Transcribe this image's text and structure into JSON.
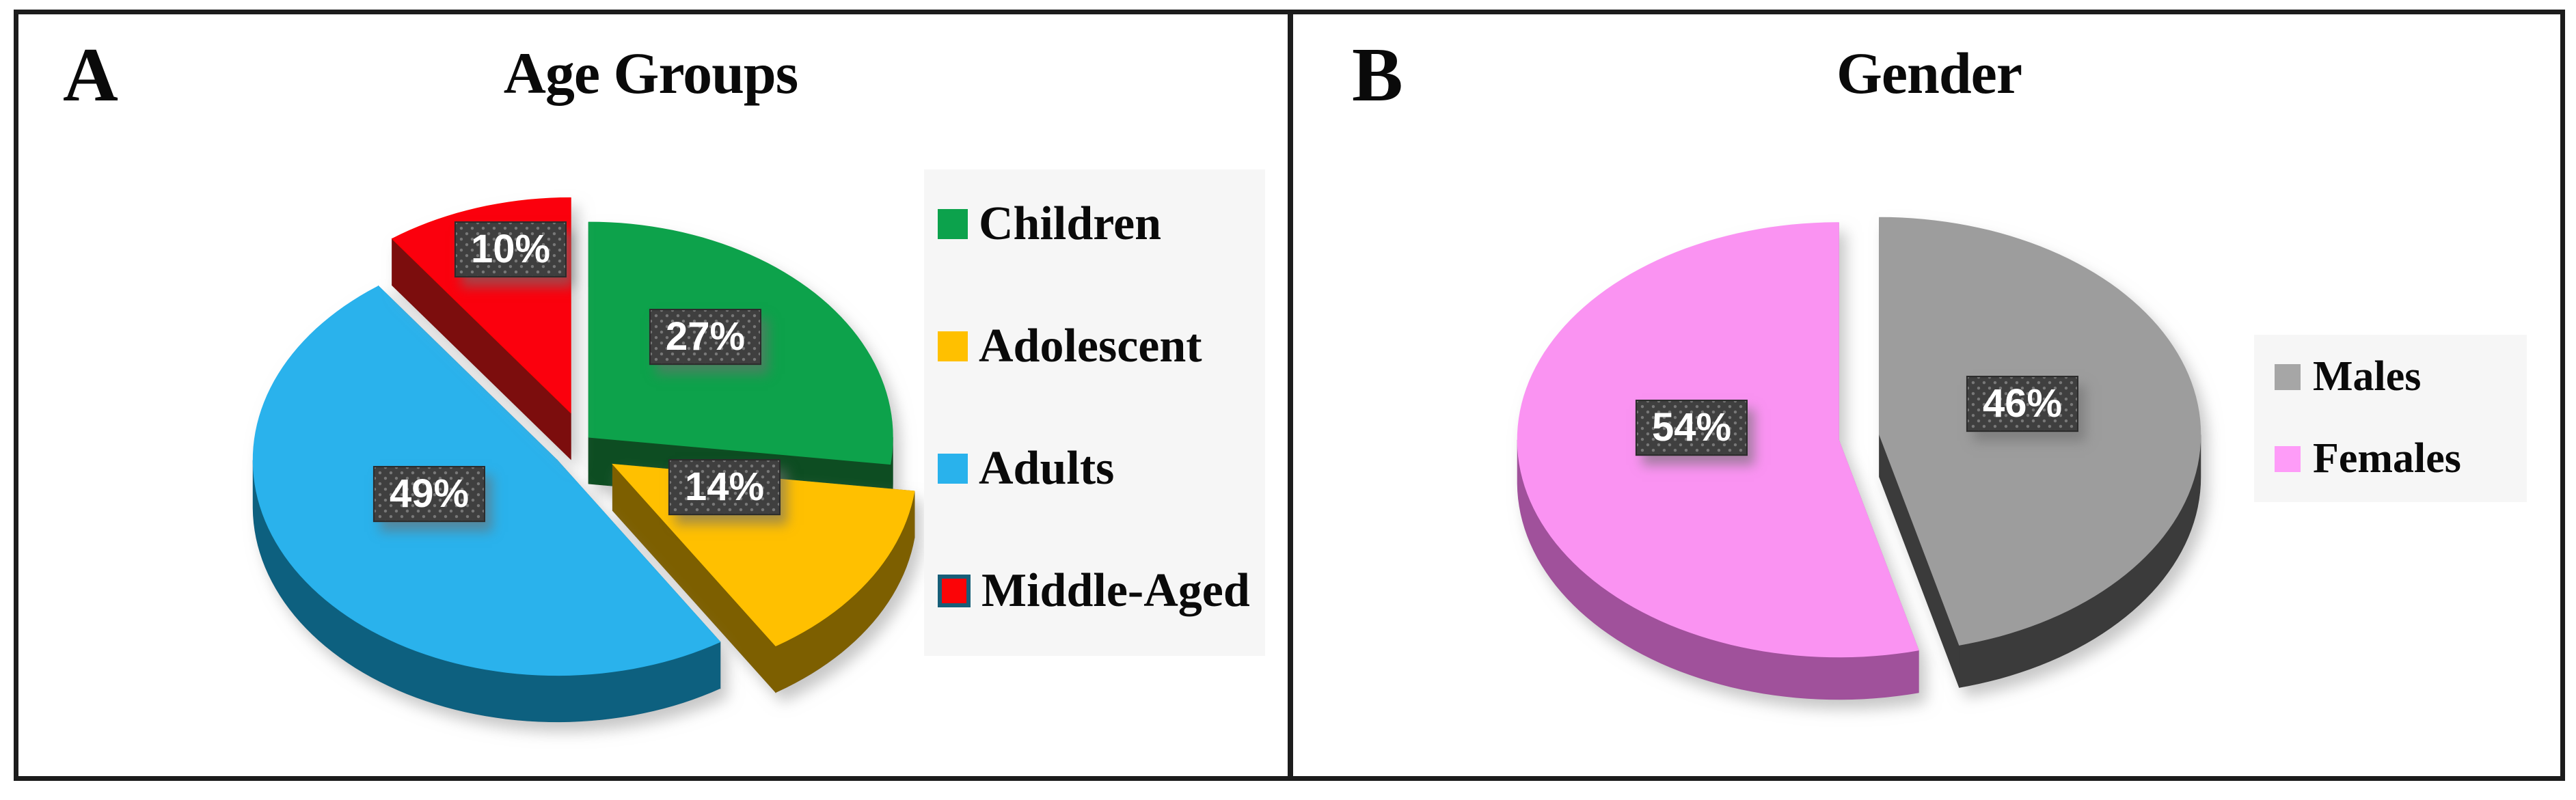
{
  "panels": [
    {
      "panel_label": "A",
      "title": "Age Groups",
      "legend": [
        {
          "label": "Children",
          "color": "#0ca24c"
        },
        {
          "label": "Adolescent",
          "color": "#ffc000"
        },
        {
          "label": "Adults",
          "color": "#29b2ec"
        },
        {
          "label": "Middle-Aged",
          "color": "#fb0407",
          "border": "#175e78"
        }
      ]
    },
    {
      "panel_label": "B",
      "title": "Gender",
      "legend": [
        {
          "label": "Males",
          "color": "#a6a6a6"
        },
        {
          "label": "Females",
          "color": "#fe9cf8"
        }
      ]
    }
  ],
  "chart_data": [
    {
      "type": "pie",
      "style": "3d-exploded",
      "title": "Age Groups",
      "labels": [
        "Children",
        "Adolescent",
        "Adults",
        "Middle-Aged"
      ],
      "values": [
        27,
        14,
        49,
        10
      ],
      "value_labels": [
        "27%",
        "14%",
        "49%",
        "10%"
      ],
      "colors": [
        "#0ca24c",
        "#ffc000",
        "#29b2ec",
        "#fb0407"
      ],
      "side_colors": [
        "#0b4d20",
        "#7d5f00",
        "#0e607f",
        "#7c0e11"
      ],
      "legend_position": "right",
      "start_angle_deg": 0,
      "direction": "clockwise"
    },
    {
      "type": "pie",
      "style": "3d-exploded",
      "title": "Gender",
      "labels": [
        "Males",
        "Females"
      ],
      "values": [
        46,
        54
      ],
      "value_labels": [
        "46%",
        "54%"
      ],
      "colors": [
        "#9d9d9d",
        "#fa93f2"
      ],
      "side_colors": [
        "#3a3a3a",
        "#a0519b"
      ],
      "legend_position": "right",
      "start_angle_deg": 0,
      "direction": "clockwise"
    }
  ]
}
